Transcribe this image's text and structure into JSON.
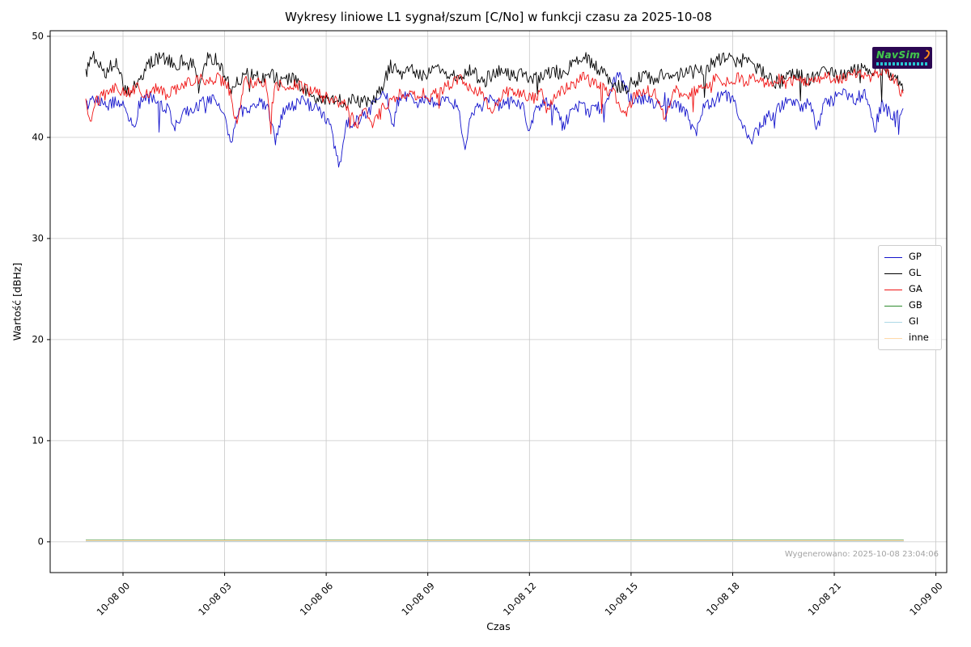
{
  "title": "Wykresy liniowe L1 sygnał/szum [C/No] w funkcji czasu za 2025-10-08",
  "axes": {
    "xlabel": "Czas",
    "ylabel": "Wartość [dBHz]",
    "x_tick_hours": [
      0,
      3,
      6,
      9,
      12,
      15,
      18,
      21,
      24
    ],
    "x_tick_labels": [
      "10-08 00",
      "10-08 03",
      "10-08 06",
      "10-08 09",
      "10-08 12",
      "10-08 15",
      "10-08 18",
      "10-08 21",
      "10-09 00"
    ],
    "y_ticks": [
      0,
      10,
      20,
      30,
      40,
      50
    ],
    "xlim_hours": [
      -2.15,
      24.32
    ],
    "ylim": [
      -3.05,
      50.55
    ],
    "grid": true,
    "grid_color": "#c8c8c8",
    "spine_color": "#000000"
  },
  "legend": {
    "position": "center-right",
    "entries": [
      "GP",
      "GL",
      "GA",
      "GB",
      "GI",
      "inne"
    ]
  },
  "watermark": "Wygenerowano: 2025-10-08 23:04:06",
  "logo": {
    "text": "NavSim",
    "bg_color": "#2b0752",
    "text_color": "#45c24f",
    "accent_color": "#ff8c1a",
    "subtext_color": "#27c7d4"
  },
  "chart_data": {
    "type": "line",
    "x_unit": "hours since 2025-10-08 00:00",
    "title": "Wykresy liniowe L1 sygnał/szum [C/No] w funkcji czasu za 2025-10-08",
    "xlabel": "Czas",
    "ylabel": "Wartość [dBHz]",
    "xlim": [
      -2.15,
      24.32
    ],
    "ylim": [
      -3.05,
      50.55
    ],
    "legend_position": "center-right",
    "series": [
      {
        "name": "GP",
        "color": "#1414cc",
        "noise_amplitude": 0.65,
        "points": [
          [
            -1.1,
            43.3
          ],
          [
            -0.8,
            43.8
          ],
          [
            -0.5,
            43.2
          ],
          [
            -0.2,
            43.6
          ],
          [
            0.1,
            43.0
          ],
          [
            0.3,
            40.7
          ],
          [
            0.5,
            43.4
          ],
          [
            0.8,
            43.9
          ],
          [
            1.1,
            43.3
          ],
          [
            1.4,
            42.6
          ],
          [
            1.5,
            40.5
          ],
          [
            1.7,
            42.2
          ],
          [
            2.0,
            42.8
          ],
          [
            2.3,
            43.4
          ],
          [
            2.6,
            43.9
          ],
          [
            2.9,
            43.2
          ],
          [
            3.2,
            39.3
          ],
          [
            3.4,
            42.4
          ],
          [
            3.7,
            43.0
          ],
          [
            4.0,
            43.5
          ],
          [
            4.3,
            42.6
          ],
          [
            4.5,
            39.9
          ],
          [
            4.7,
            42.4
          ],
          [
            5.0,
            43.0
          ],
          [
            5.3,
            43.6
          ],
          [
            5.6,
            43.0
          ],
          [
            5.9,
            42.4
          ],
          [
            6.1,
            41.5
          ],
          [
            6.4,
            37.0
          ],
          [
            6.6,
            41.3
          ],
          [
            6.9,
            41.8
          ],
          [
            7.2,
            42.4
          ],
          [
            7.5,
            43.6
          ],
          [
            7.8,
            44.3
          ],
          [
            7.95,
            40.5
          ],
          [
            8.1,
            43.6
          ],
          [
            8.4,
            44.0
          ],
          [
            8.7,
            43.4
          ],
          [
            9.0,
            43.8
          ],
          [
            9.3,
            43.2
          ],
          [
            9.6,
            43.7
          ],
          [
            9.9,
            43.0
          ],
          [
            10.1,
            38.5
          ],
          [
            10.3,
            42.6
          ],
          [
            10.6,
            43.2
          ],
          [
            10.9,
            43.7
          ],
          [
            11.2,
            43.1
          ],
          [
            11.5,
            43.6
          ],
          [
            11.8,
            42.9
          ],
          [
            12.0,
            40.8
          ],
          [
            12.2,
            42.7
          ],
          [
            12.5,
            43.3
          ],
          [
            12.8,
            42.8
          ],
          [
            13.0,
            40.9
          ],
          [
            13.2,
            42.6
          ],
          [
            13.5,
            43.1
          ],
          [
            13.8,
            42.5
          ],
          [
            14.1,
            43.0
          ],
          [
            14.4,
            44.6
          ],
          [
            14.6,
            46.3
          ],
          [
            14.8,
            44.9
          ],
          [
            15.1,
            43.4
          ],
          [
            15.4,
            43.9
          ],
          [
            15.7,
            43.3
          ],
          [
            16.0,
            43.8
          ],
          [
            16.3,
            43.1
          ],
          [
            16.6,
            42.6
          ],
          [
            16.9,
            40.3
          ],
          [
            17.1,
            42.8
          ],
          [
            17.4,
            43.4
          ],
          [
            17.7,
            44.4
          ],
          [
            18.0,
            43.6
          ],
          [
            18.3,
            41.2
          ],
          [
            18.5,
            39.4
          ],
          [
            18.8,
            41.0
          ],
          [
            19.1,
            42.2
          ],
          [
            19.4,
            43.0
          ],
          [
            19.7,
            43.6
          ],
          [
            20.0,
            43.0
          ],
          [
            20.3,
            43.5
          ],
          [
            20.5,
            40.9
          ],
          [
            20.7,
            43.2
          ],
          [
            21.0,
            43.8
          ],
          [
            21.3,
            44.4
          ],
          [
            21.6,
            43.8
          ],
          [
            21.9,
            44.3
          ],
          [
            22.2,
            40.9
          ],
          [
            22.4,
            43.4
          ],
          [
            22.6,
            42.6
          ],
          [
            22.8,
            41.9
          ],
          [
            23.05,
            43.4
          ]
        ]
      },
      {
        "name": "GL",
        "color": "#000000",
        "noise_amplitude": 0.7,
        "points": [
          [
            -1.1,
            46.2
          ],
          [
            -0.9,
            48.2
          ],
          [
            -0.7,
            47.3
          ],
          [
            -0.5,
            46.5
          ],
          [
            -0.2,
            47.6
          ],
          [
            0.0,
            45.2
          ],
          [
            0.2,
            44.6
          ],
          [
            0.5,
            46.0
          ],
          [
            0.8,
            47.4
          ],
          [
            1.2,
            47.9
          ],
          [
            1.5,
            47.2
          ],
          [
            1.8,
            47.6
          ],
          [
            2.1,
            47.0
          ],
          [
            2.25,
            44.7
          ],
          [
            2.4,
            47.6
          ],
          [
            2.7,
            47.9
          ],
          [
            3.0,
            46.2
          ],
          [
            3.2,
            44.8
          ],
          [
            3.5,
            45.9
          ],
          [
            3.8,
            46.4
          ],
          [
            4.1,
            45.6
          ],
          [
            4.4,
            46.1
          ],
          [
            4.7,
            45.4
          ],
          [
            5.0,
            45.8
          ],
          [
            5.3,
            44.9
          ],
          [
            5.6,
            43.9
          ],
          [
            5.9,
            43.6
          ],
          [
            6.2,
            43.8
          ],
          [
            6.5,
            43.5
          ],
          [
            6.8,
            44.0
          ],
          [
            7.1,
            43.4
          ],
          [
            7.4,
            43.8
          ],
          [
            7.6,
            44.5
          ],
          [
            7.9,
            47.0
          ],
          [
            8.2,
            46.3
          ],
          [
            8.5,
            46.6
          ],
          [
            8.8,
            46.1
          ],
          [
            9.1,
            46.6
          ],
          [
            9.4,
            46.8
          ],
          [
            9.7,
            46.0
          ],
          [
            10.0,
            46.3
          ],
          [
            10.3,
            46.6
          ],
          [
            10.6,
            45.4
          ],
          [
            10.9,
            46.2
          ],
          [
            11.2,
            46.6
          ],
          [
            11.5,
            46.0
          ],
          [
            11.8,
            46.4
          ],
          [
            12.1,
            45.6
          ],
          [
            12.4,
            46.3
          ],
          [
            12.7,
            46.6
          ],
          [
            13.0,
            46.2
          ],
          [
            13.3,
            47.6
          ],
          [
            13.6,
            47.9
          ],
          [
            13.9,
            47.2
          ],
          [
            14.2,
            46.4
          ],
          [
            14.5,
            45.2
          ],
          [
            14.8,
            44.8
          ],
          [
            15.1,
            45.6
          ],
          [
            15.4,
            46.2
          ],
          [
            15.7,
            45.8
          ],
          [
            16.0,
            46.4
          ],
          [
            16.3,
            46.0
          ],
          [
            16.6,
            46.6
          ],
          [
            16.9,
            47.2
          ],
          [
            17.2,
            46.6
          ],
          [
            17.5,
            47.6
          ],
          [
            17.8,
            48.0
          ],
          [
            18.1,
            47.2
          ],
          [
            18.4,
            47.8
          ],
          [
            18.7,
            46.8
          ],
          [
            19.0,
            46.2
          ],
          [
            19.3,
            45.4
          ],
          [
            19.6,
            45.8
          ],
          [
            19.9,
            46.3
          ],
          [
            20.2,
            45.6
          ],
          [
            20.5,
            46.1
          ],
          [
            20.8,
            46.5
          ],
          [
            21.1,
            46.0
          ],
          [
            21.4,
            46.4
          ],
          [
            21.7,
            46.8
          ],
          [
            22.0,
            46.3
          ],
          [
            22.3,
            47.0
          ],
          [
            22.6,
            46.4
          ],
          [
            22.8,
            45.6
          ],
          [
            23.05,
            45.2
          ]
        ]
      },
      {
        "name": "GA",
        "color": "#f01414",
        "noise_amplitude": 0.6,
        "points": [
          [
            -1.1,
            43.9
          ],
          [
            -0.95,
            40.8
          ],
          [
            -0.8,
            43.6
          ],
          [
            -0.5,
            44.3
          ],
          [
            -0.2,
            44.9
          ],
          [
            0.1,
            44.4
          ],
          [
            0.4,
            44.9
          ],
          [
            0.7,
            44.3
          ],
          [
            1.0,
            44.8
          ],
          [
            1.3,
            44.2
          ],
          [
            1.6,
            44.7
          ],
          [
            1.9,
            45.3
          ],
          [
            2.2,
            45.9
          ],
          [
            2.5,
            45.4
          ],
          [
            2.8,
            45.8
          ],
          [
            3.1,
            45.2
          ],
          [
            3.35,
            41.6
          ],
          [
            3.6,
            45.6
          ],
          [
            3.9,
            45.2
          ],
          [
            4.2,
            45.7
          ],
          [
            4.35,
            42.2
          ],
          [
            4.5,
            45.3
          ],
          [
            4.8,
            45.0
          ],
          [
            5.1,
            45.4
          ],
          [
            5.4,
            44.7
          ],
          [
            5.7,
            44.4
          ],
          [
            6.0,
            44.0
          ],
          [
            6.3,
            43.6
          ],
          [
            6.6,
            43.2
          ],
          [
            6.9,
            40.9
          ],
          [
            7.1,
            43.0
          ],
          [
            7.35,
            41.3
          ],
          [
            7.6,
            42.8
          ],
          [
            7.9,
            43.6
          ],
          [
            8.2,
            44.4
          ],
          [
            8.5,
            44.0
          ],
          [
            8.8,
            44.5
          ],
          [
            9.1,
            44.0
          ],
          [
            9.4,
            44.6
          ],
          [
            9.7,
            45.3
          ],
          [
            10.0,
            45.7
          ],
          [
            10.3,
            44.9
          ],
          [
            10.6,
            44.4
          ],
          [
            10.9,
            42.2
          ],
          [
            11.2,
            44.3
          ],
          [
            11.5,
            44.8
          ],
          [
            11.8,
            44.3
          ],
          [
            12.1,
            43.9
          ],
          [
            12.4,
            44.4
          ],
          [
            12.55,
            42.3
          ],
          [
            12.7,
            44.2
          ],
          [
            13.0,
            44.7
          ],
          [
            13.3,
            45.3
          ],
          [
            13.6,
            45.9
          ],
          [
            13.9,
            45.3
          ],
          [
            14.2,
            44.8
          ],
          [
            14.5,
            44.4
          ],
          [
            14.8,
            41.9
          ],
          [
            15.1,
            44.3
          ],
          [
            15.4,
            44.8
          ],
          [
            15.7,
            44.4
          ],
          [
            16.0,
            42.1
          ],
          [
            16.3,
            44.6
          ],
          [
            16.6,
            44.2
          ],
          [
            16.9,
            44.7
          ],
          [
            17.2,
            45.3
          ],
          [
            17.5,
            45.8
          ],
          [
            17.8,
            45.4
          ],
          [
            18.1,
            45.9
          ],
          [
            18.4,
            45.5
          ],
          [
            18.7,
            45.9
          ],
          [
            19.0,
            45.4
          ],
          [
            19.3,
            45.8
          ],
          [
            19.6,
            45.3
          ],
          [
            19.9,
            45.7
          ],
          [
            20.2,
            45.2
          ],
          [
            20.5,
            45.7
          ],
          [
            20.8,
            46.1
          ],
          [
            21.1,
            45.6
          ],
          [
            21.4,
            46.0
          ],
          [
            21.7,
            46.3
          ],
          [
            22.0,
            45.8
          ],
          [
            22.3,
            46.4
          ],
          [
            22.5,
            46.8
          ],
          [
            22.7,
            45.9
          ],
          [
            22.9,
            44.9
          ],
          [
            23.05,
            44.3
          ]
        ]
      },
      {
        "name": "GB",
        "color": "#2e8b2e",
        "noise_amplitude": 0,
        "points": [
          [
            -1.1,
            0.16
          ],
          [
            23.05,
            0.16
          ]
        ]
      },
      {
        "name": "GI",
        "color": "#add8e6",
        "noise_amplitude": 0,
        "points": [
          [
            -1.1,
            0.08
          ],
          [
            23.05,
            0.08
          ]
        ]
      },
      {
        "name": "inne",
        "color": "#ffd9a8",
        "noise_amplitude": 0,
        "points": [
          [
            -1.1,
            0.12
          ],
          [
            23.05,
            0.12
          ]
        ]
      }
    ]
  }
}
